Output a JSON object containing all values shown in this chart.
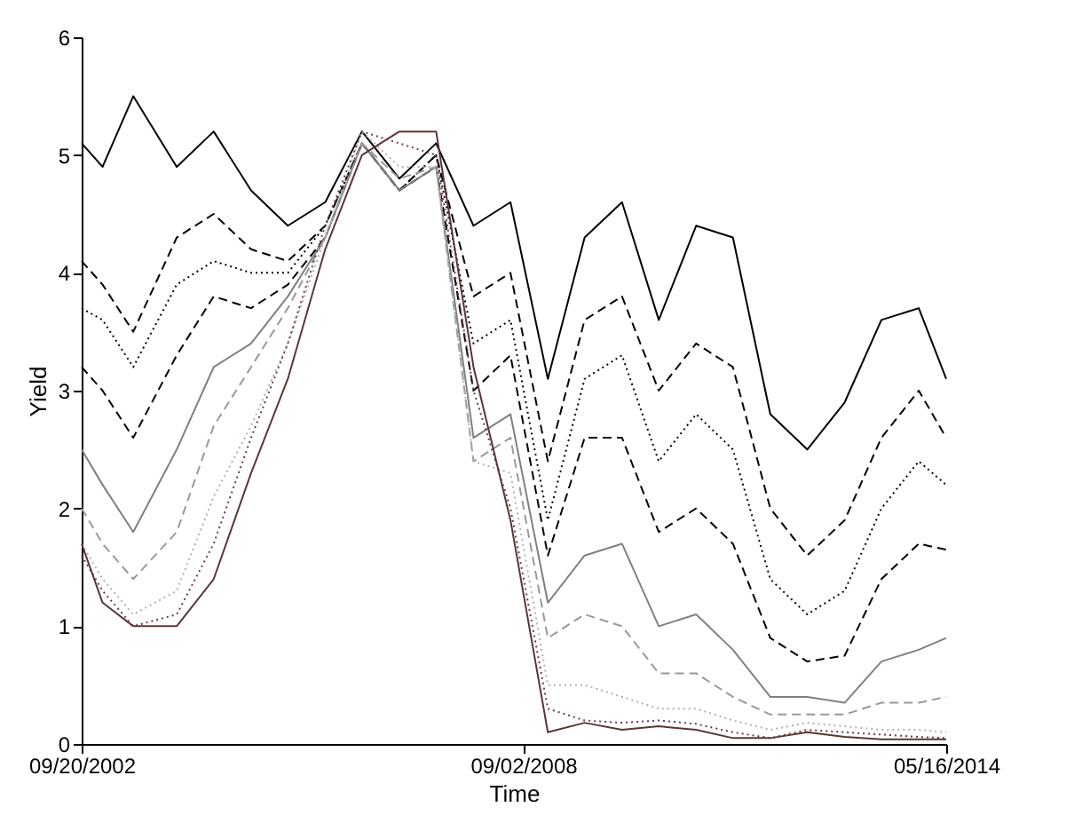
{
  "chart_data": {
    "type": "line",
    "xlabel": "Time",
    "ylabel": "Yield",
    "x": [
      "2002-09-20",
      "2003-01-01",
      "2003-06-01",
      "2004-01-01",
      "2004-07-01",
      "2005-01-01",
      "2005-07-01",
      "2006-01-01",
      "2006-07-01",
      "2007-01-01",
      "2007-07-01",
      "2008-01-01",
      "2008-07-01",
      "2009-01-01",
      "2009-07-01",
      "2010-01-01",
      "2010-07-01",
      "2011-01-01",
      "2011-07-01",
      "2012-01-01",
      "2012-07-01",
      "2013-01-01",
      "2013-07-01",
      "2014-01-01",
      "2014-05-16"
    ],
    "xlim": [
      "2002-09-20",
      "2014-05-16"
    ],
    "xticks": [
      {
        "value": "2002-09-20",
        "label": "09/20/2002"
      },
      {
        "value": "2008-09-02",
        "label": "09/02/2008"
      },
      {
        "value": "2014-05-16",
        "label": "05/16/2014"
      }
    ],
    "ylim": [
      0,
      6
    ],
    "yticks": [
      0,
      1,
      2,
      3,
      4,
      5,
      6
    ],
    "grid": false,
    "legend": false,
    "marker": "none",
    "series": [
      {
        "color": "#000000",
        "line_style": "solid",
        "values": [
          5.1,
          4.9,
          5.5,
          4.9,
          5.2,
          4.7,
          4.4,
          4.6,
          5.2,
          4.8,
          5.1,
          4.4,
          4.6,
          3.1,
          4.3,
          4.6,
          3.6,
          4.4,
          4.3,
          2.8,
          2.5,
          2.9,
          3.6,
          3.7,
          3.1
        ]
      },
      {
        "color": "#000000",
        "line_style": "dashed",
        "values": [
          4.1,
          3.9,
          3.5,
          4.3,
          4.5,
          4.2,
          4.1,
          4.4,
          5.1,
          4.7,
          5.0,
          3.8,
          4.0,
          2.4,
          3.6,
          3.8,
          3.0,
          3.4,
          3.2,
          2.0,
          1.6,
          1.9,
          2.6,
          3.0,
          2.6
        ]
      },
      {
        "color": "#000000",
        "line_style": "dotted",
        "values": [
          3.7,
          3.6,
          3.2,
          3.9,
          4.1,
          4.0,
          4.0,
          4.4,
          5.1,
          4.7,
          5.0,
          3.4,
          3.6,
          1.9,
          3.1,
          3.3,
          2.4,
          2.8,
          2.5,
          1.4,
          1.1,
          1.3,
          2.0,
          2.4,
          2.2
        ]
      },
      {
        "color": "#000000",
        "line_style": "dashed",
        "values": [
          3.2,
          3.0,
          2.6,
          3.3,
          3.8,
          3.7,
          3.9,
          4.3,
          5.1,
          4.7,
          4.9,
          3.0,
          3.3,
          1.6,
          2.6,
          2.6,
          1.8,
          2.0,
          1.7,
          0.9,
          0.7,
          0.75,
          1.4,
          1.7,
          1.65
        ]
      },
      {
        "color": "#808080",
        "line_style": "solid",
        "values": [
          2.5,
          2.2,
          1.8,
          2.5,
          3.2,
          3.4,
          3.8,
          4.3,
          5.1,
          4.7,
          4.9,
          2.6,
          2.8,
          1.2,
          1.6,
          1.7,
          1.0,
          1.1,
          0.8,
          0.4,
          0.4,
          0.35,
          0.7,
          0.8,
          0.9
        ]
      },
      {
        "color": "#999999",
        "line_style": "dashed",
        "values": [
          2.0,
          1.7,
          1.4,
          1.8,
          2.7,
          3.2,
          3.7,
          4.3,
          5.1,
          4.8,
          4.9,
          2.4,
          2.6,
          0.9,
          1.1,
          1.0,
          0.6,
          0.6,
          0.4,
          0.25,
          0.25,
          0.25,
          0.35,
          0.35,
          0.4
        ]
      },
      {
        "color": "#b0b0b0",
        "line_style": "dotted",
        "values": [
          1.7,
          1.4,
          1.1,
          1.3,
          2.1,
          2.7,
          3.4,
          4.3,
          5.2,
          4.9,
          4.9,
          2.4,
          2.3,
          0.5,
          0.5,
          0.4,
          0.3,
          0.3,
          0.2,
          0.12,
          0.18,
          0.15,
          0.12,
          0.12,
          0.1
        ]
      },
      {
        "color": "#6e3a4a",
        "line_style": "dotted",
        "values": [
          1.6,
          1.3,
          1.0,
          1.1,
          1.7,
          2.6,
          3.4,
          4.4,
          5.2,
          5.1,
          5.0,
          3.0,
          2.0,
          0.3,
          0.2,
          0.18,
          0.2,
          0.17,
          0.1,
          0.05,
          0.12,
          0.1,
          0.08,
          0.06,
          0.05
        ]
      },
      {
        "color": "#5c3535",
        "line_style": "solid",
        "values": [
          1.7,
          1.2,
          1.0,
          1.0,
          1.4,
          2.3,
          3.1,
          4.2,
          5.0,
          5.2,
          5.2,
          3.2,
          1.9,
          0.1,
          0.18,
          0.12,
          0.15,
          0.12,
          0.05,
          0.05,
          0.1,
          0.06,
          0.04,
          0.04,
          0.04
        ]
      }
    ]
  }
}
